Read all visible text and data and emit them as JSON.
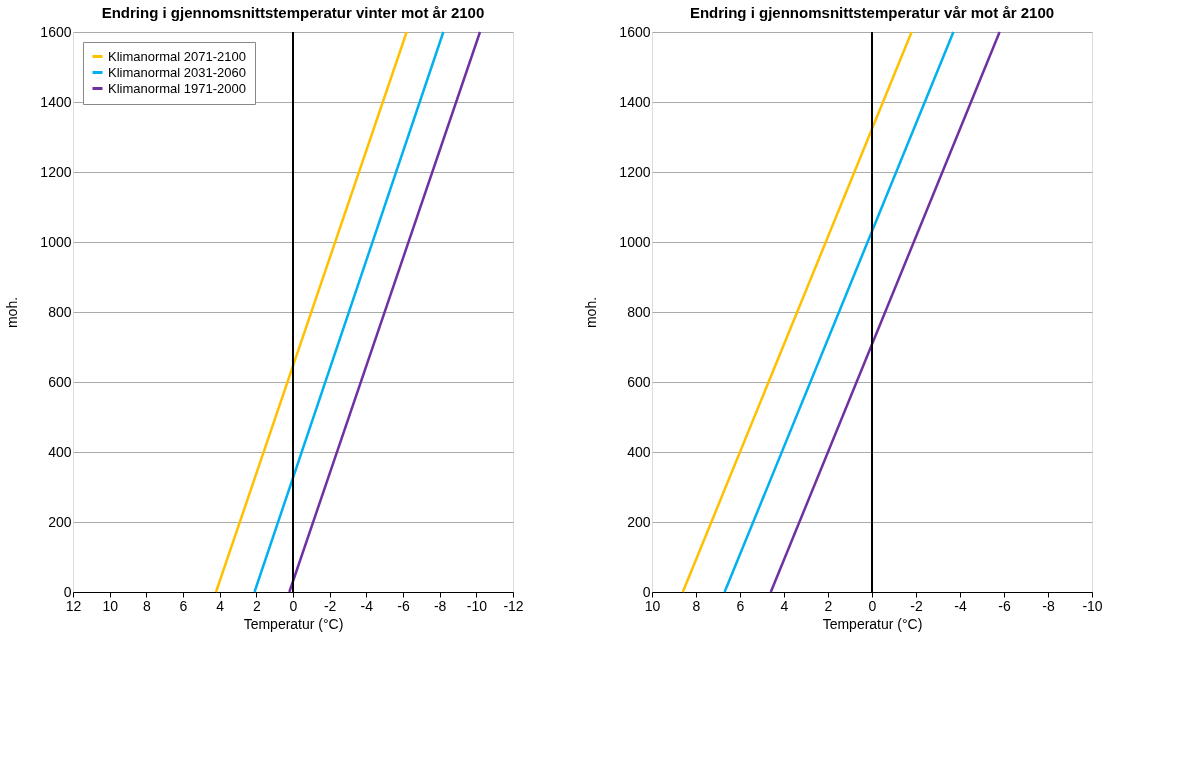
{
  "chart_data": [
    {
      "type": "line",
      "title": "Endring i gjennomsnittstemperatur vinter mot år 2100",
      "xlabel": "Temperatur (°C)",
      "ylabel": "moh.",
      "xlim": [
        12,
        -12
      ],
      "xticks": [
        12,
        10,
        8,
        6,
        4,
        2,
        0,
        -2,
        -4,
        -6,
        -8,
        -10,
        -12
      ],
      "ylim": [
        0,
        1600
      ],
      "yticks": [
        0,
        200,
        400,
        600,
        800,
        1000,
        1200,
        1400,
        1600
      ],
      "grid": "y",
      "legend": "top left",
      "marker": "none",
      "line_style": "solid",
      "ref_lines": [
        {
          "axis": "x",
          "value": 0,
          "color": "#000000"
        }
      ],
      "series": [
        {
          "name": "Klimanormal 2071-2100",
          "color": "#ffc000",
          "x": [
            4.2,
            -6.2
          ],
          "values": [
            0,
            1600
          ]
        },
        {
          "name": "Klimanormal 2031-2060",
          "color": "#00b0f0",
          "x": [
            2.1,
            -8.2
          ],
          "values": [
            0,
            1600
          ]
        },
        {
          "name": "Klimanormal 1971-2000",
          "color": "#7030a0",
          "x": [
            0.2,
            -10.2
          ],
          "values": [
            0,
            1600
          ]
        }
      ]
    },
    {
      "type": "line",
      "title": "Endring i gjennomsnittstemperatur vår mot år 2100",
      "xlabel": "Temperatur (°C)",
      "ylabel": "moh.",
      "xlim": [
        10,
        -10
      ],
      "xticks": [
        10,
        8,
        6,
        4,
        2,
        0,
        -2,
        -4,
        -6,
        -8,
        -10
      ],
      "ylim": [
        0,
        1600
      ],
      "yticks": [
        0,
        200,
        400,
        600,
        800,
        1000,
        1200,
        1400,
        1600
      ],
      "grid": "y",
      "legend": "top left",
      "marker": "none",
      "line_style": "solid",
      "ref_lines": [
        {
          "axis": "x",
          "value": 0,
          "color": "#000000"
        }
      ],
      "series": [
        {
          "name": "Klimanormal 2071-2100",
          "color": "#ffc000",
          "x": [
            8.6,
            -1.8
          ],
          "values": [
            0,
            1600
          ]
        },
        {
          "name": "Klimanormal 2031-2060",
          "color": "#00b0f0",
          "x": [
            6.7,
            -3.7
          ],
          "values": [
            0,
            1600
          ]
        },
        {
          "name": "Klimanormal 1971-2000",
          "color": "#7030a0",
          "x": [
            4.6,
            -5.8
          ],
          "values": [
            0,
            1600
          ]
        }
      ]
    }
  ]
}
